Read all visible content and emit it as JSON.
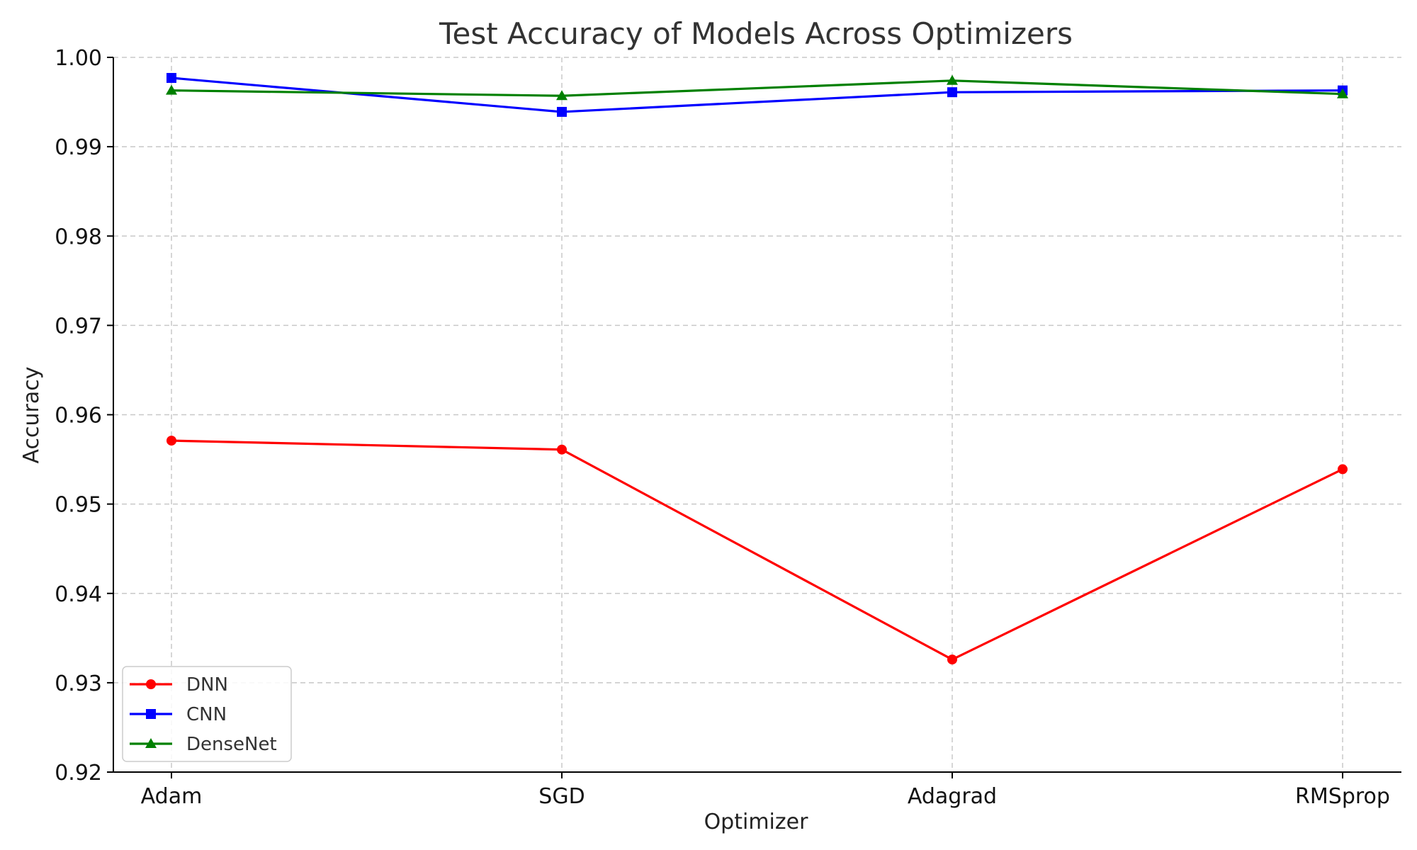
{
  "chart_data": {
    "type": "line",
    "title": "Test Accuracy of Models Across Optimizers",
    "xlabel": "Optimizer",
    "ylabel": "Accuracy",
    "categories": [
      "Adam",
      "SGD",
      "Adagrad",
      "RMSprop"
    ],
    "ylim": [
      0.92,
      1.0
    ],
    "yticks": [
      0.92,
      0.93,
      0.94,
      0.95,
      0.96,
      0.97,
      0.98,
      0.99,
      1.0
    ],
    "ytick_labels": [
      "0.92",
      "0.93",
      "0.94",
      "0.95",
      "0.96",
      "0.97",
      "0.98",
      "0.99",
      "1.00"
    ],
    "grid": true,
    "legend_position": "lower-left",
    "series": [
      {
        "name": "DNN",
        "color": "#ff0000",
        "marker": "circle",
        "values": [
          0.9571,
          0.9561,
          0.9326,
          0.9539
        ]
      },
      {
        "name": "CNN",
        "color": "#0000ff",
        "marker": "square",
        "values": [
          0.9977,
          0.9939,
          0.9961,
          0.9963
        ]
      },
      {
        "name": "DenseNet",
        "color": "#008000",
        "marker": "triangle",
        "values": [
          0.9963,
          0.9957,
          0.9974,
          0.9959
        ]
      }
    ]
  }
}
